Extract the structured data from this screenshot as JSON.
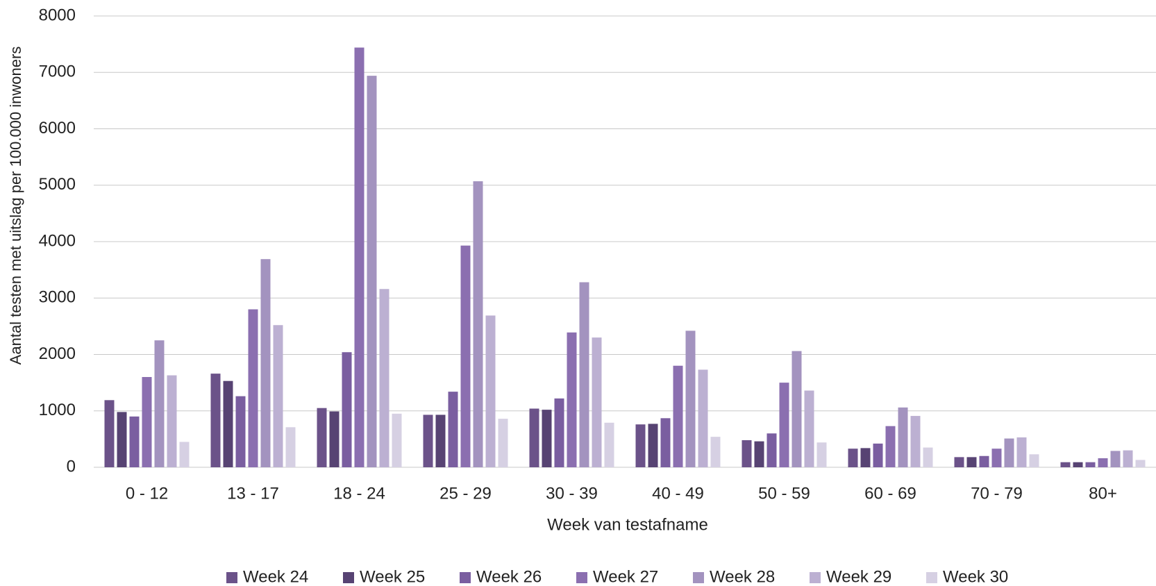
{
  "chart_data": {
    "type": "bar",
    "x_label": "Week van testafname",
    "y_label": "Aantal testen met uitslag per 100.000 inwoners",
    "categories": [
      "0 - 12",
      "13 - 17",
      "18 - 24",
      "25 - 29",
      "30 - 39",
      "40 - 49",
      "50 - 59",
      "60 - 69",
      "70 - 79",
      "80+"
    ],
    "series": [
      {
        "name": "Week 24",
        "color": "#6b5289",
        "values": [
          1190,
          1660,
          1050,
          930,
          1040,
          760,
          480,
          330,
          180,
          90
        ]
      },
      {
        "name": "Week 25",
        "color": "#574373",
        "values": [
          980,
          1530,
          990,
          930,
          1020,
          770,
          460,
          340,
          180,
          90
        ]
      },
      {
        "name": "Week 26",
        "color": "#7a5ea0",
        "values": [
          900,
          1260,
          2040,
          1340,
          1220,
          870,
          600,
          420,
          200,
          90
        ]
      },
      {
        "name": "Week 27",
        "color": "#8b6fb0",
        "values": [
          1600,
          2800,
          7440,
          3930,
          2390,
          1800,
          1500,
          730,
          330,
          160
        ]
      },
      {
        "name": "Week 28",
        "color": "#a393bf",
        "values": [
          2250,
          3690,
          6940,
          5070,
          3280,
          2420,
          2060,
          1060,
          510,
          290
        ]
      },
      {
        "name": "Week 29",
        "color": "#bcb0d2",
        "values": [
          1630,
          2520,
          3160,
          2690,
          2300,
          1730,
          1360,
          910,
          530,
          300
        ]
      },
      {
        "name": "Week 30",
        "color": "#d6d0e3",
        "values": [
          450,
          710,
          950,
          860,
          790,
          540,
          440,
          350,
          230,
          130
        ]
      }
    ],
    "ylim": [
      0,
      8000
    ],
    "yticks": [
      0,
      1000,
      2000,
      3000,
      4000,
      5000,
      6000,
      7000,
      8000
    ],
    "grid": true,
    "legend": "bottom"
  }
}
